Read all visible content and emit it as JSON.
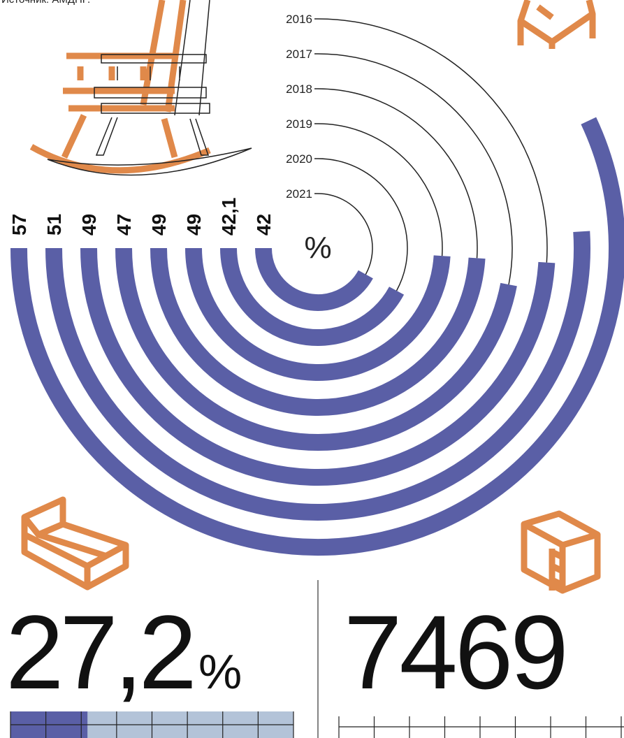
{
  "source": "Источник: АМДПР.",
  "chart_data": {
    "type": "radial-bar",
    "categories": [
      null,
      null,
      "2016",
      "2017",
      "2018",
      "2019",
      "2020",
      "2021"
    ],
    "values": [
      57,
      51,
      49,
      47,
      49,
      49,
      42.1,
      42
    ],
    "value_labels": [
      "57",
      "51",
      "49",
      "47",
      "49",
      "49",
      "42,1",
      "42"
    ],
    "center_label": "%",
    "color": "#5a5fa6"
  },
  "stats": [
    {
      "value": 27.2,
      "label": "27,2",
      "unit": "%",
      "xlim": [
        0,
        100
      ],
      "color": "#5a5fa6",
      "track_color": "#b3c3d8"
    },
    {
      "value": 7469
    }
  ]
}
